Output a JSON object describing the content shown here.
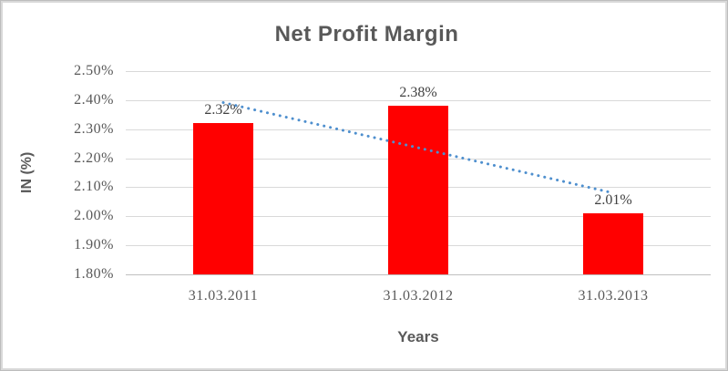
{
  "chart_data": {
    "type": "bar",
    "title": "Net Profit Margin",
    "xlabel": "Years",
    "ylabel": "IN (%)",
    "categories": [
      "31.03.2011",
      "31.03.2012",
      "31.03.2013"
    ],
    "values": [
      2.32,
      2.38,
      2.01
    ],
    "data_labels": [
      "2.32%",
      "2.38%",
      "2.01%"
    ],
    "yticks": [
      "2.50%",
      "2.40%",
      "2.30%",
      "2.20%",
      "2.10%",
      "2.00%",
      "1.90%",
      "1.80%"
    ],
    "ytick_values": [
      2.5,
      2.4,
      2.3,
      2.2,
      2.1,
      2.0,
      1.9,
      1.8
    ],
    "ylim": [
      1.8,
      2.5
    ],
    "grid": true,
    "legend": false,
    "bar_color": "#ff0000",
    "gridline_color": "#d9d9d9",
    "axis_line_color": "#bfbfbf",
    "text_color": "#595959",
    "trendline": {
      "type": "linear",
      "style": "dotted",
      "color": "#4e8fce",
      "start_value": 2.3917,
      "end_value": 2.0817
    }
  }
}
